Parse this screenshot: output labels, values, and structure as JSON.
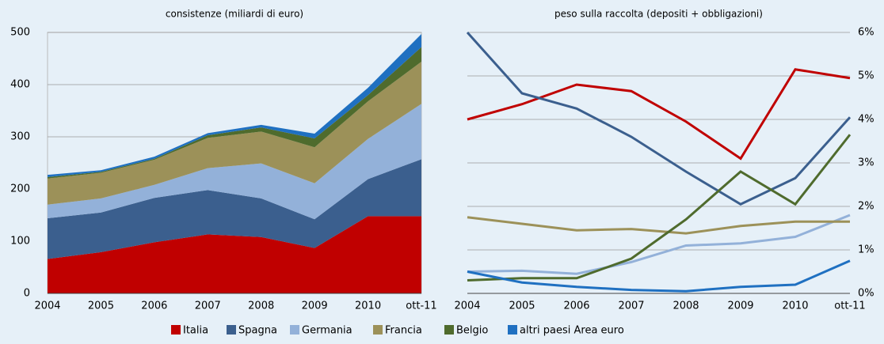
{
  "chart_data": [
    {
      "type": "area",
      "stacked": true,
      "title": "consistenze (miliardi di euro)",
      "categories": [
        "2004",
        "2005",
        "2006",
        "2007",
        "2008",
        "2009",
        "2010",
        "ott-11"
      ],
      "ylim": [
        0,
        500
      ],
      "yticks": [
        0,
        100,
        200,
        300,
        400,
        500
      ],
      "y_axis_side": "left",
      "grid": true,
      "series": [
        {
          "name": "Italia",
          "color": "#c00000",
          "values": [
            66,
            79,
            98,
            113,
            108,
            87,
            148,
            148
          ]
        },
        {
          "name": "Spagna",
          "color": "#3b5f8e",
          "values": [
            78,
            76,
            85,
            85,
            74,
            55,
            71,
            109
          ]
        },
        {
          "name": "Germania",
          "color": "#93b1d9",
          "values": [
            26,
            27,
            25,
            42,
            67,
            69,
            77,
            106
          ]
        },
        {
          "name": "Francia",
          "color": "#9c9159",
          "values": [
            50,
            49,
            48,
            58,
            61,
            69,
            72,
            81
          ]
        },
        {
          "name": "Belgio",
          "color": "#4f6b2d",
          "values": [
            3,
            2,
            2,
            5,
            8,
            17,
            12,
            28
          ]
        },
        {
          "name": "altri paesi Area euro",
          "color": "#1f70c1",
          "values": [
            4,
            3,
            4,
            4,
            5,
            9,
            14,
            25
          ]
        }
      ]
    },
    {
      "type": "line",
      "title": "peso sulla raccolta (depositi + obbligazioni)",
      "categories": [
        "2004",
        "2005",
        "2006",
        "2007",
        "2008",
        "2009",
        "2010",
        "ott-11"
      ],
      "ylim": [
        0,
        6
      ],
      "y_axis_side": "right",
      "grid": true,
      "yticks": [
        {
          "value": 0,
          "label": "0%"
        },
        {
          "value": 1,
          "label": "1%"
        },
        {
          "value": 2,
          "label": "2%"
        },
        {
          "value": 3,
          "label": "3%"
        },
        {
          "value": 4,
          "label": "4%"
        },
        {
          "value": 5,
          "label": "5%"
        },
        {
          "value": 6,
          "label": "6%"
        }
      ],
      "series": [
        {
          "name": "Italia",
          "color": "#c00000",
          "values": [
            4.0,
            4.35,
            4.8,
            4.65,
            3.95,
            3.1,
            5.15,
            4.95
          ]
        },
        {
          "name": "Spagna",
          "color": "#3b5f8e",
          "values": [
            6.0,
            4.6,
            4.25,
            3.6,
            2.8,
            2.05,
            2.65,
            4.05
          ]
        },
        {
          "name": "Germania",
          "color": "#93b1d9",
          "values": [
            0.5,
            0.52,
            0.45,
            0.72,
            1.1,
            1.15,
            1.3,
            1.8
          ]
        },
        {
          "name": "Francia",
          "color": "#9c9159",
          "values": [
            1.75,
            1.6,
            1.45,
            1.48,
            1.38,
            1.55,
            1.65,
            1.65
          ]
        },
        {
          "name": "Belgio",
          "color": "#4f6b2d",
          "values": [
            0.3,
            0.35,
            0.35,
            0.8,
            1.7,
            2.8,
            2.05,
            3.65
          ]
        },
        {
          "name": "altri paesi Area euro",
          "color": "#1f70c1",
          "values": [
            0.5,
            0.25,
            0.15,
            0.08,
            0.05,
            0.15,
            0.2,
            0.75
          ]
        }
      ]
    }
  ]
}
